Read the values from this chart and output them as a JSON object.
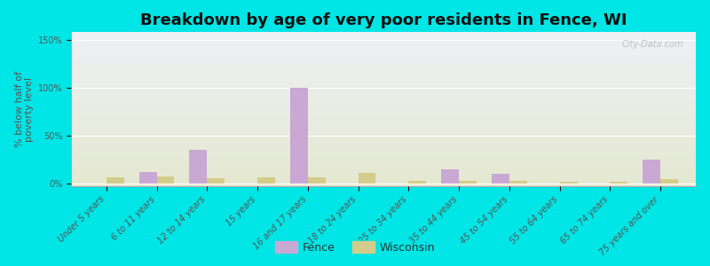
{
  "title": "Breakdown by age of very poor residents in Fence, WI",
  "ylabel": "% below half of\npoverty level",
  "categories": [
    "Under 5 years",
    "6 to 11 years",
    "12 to 14 years",
    "15 years",
    "16 and 17 years",
    "18 to 24 years",
    "25 to 34 years",
    "35 to 44 years",
    "45 to 54 years",
    "55 to 64 years",
    "65 to 74 years",
    "75 years and over"
  ],
  "fence_values": [
    0,
    12,
    35,
    0,
    100,
    0,
    0,
    15,
    10,
    0,
    0,
    25
  ],
  "wisconsin_values": [
    6,
    7,
    5,
    6,
    6,
    11,
    3,
    3,
    3,
    2,
    2,
    4
  ],
  "fence_color": "#c9a8d4",
  "wisconsin_color": "#d4cc8a",
  "background_outer": "#00e5e5",
  "background_plot_top": "#eef0f5",
  "background_plot_bottom": "#e4e8d0",
  "yticks": [
    0,
    50,
    100,
    150
  ],
  "ytick_labels": [
    "0%",
    "50%",
    "100%",
    "150%"
  ],
  "ylim": [
    -3,
    158
  ],
  "title_fontsize": 13,
  "axis_label_fontsize": 8,
  "tick_label_fontsize": 7,
  "bar_width": 0.35,
  "watermark": "City-Data.com"
}
